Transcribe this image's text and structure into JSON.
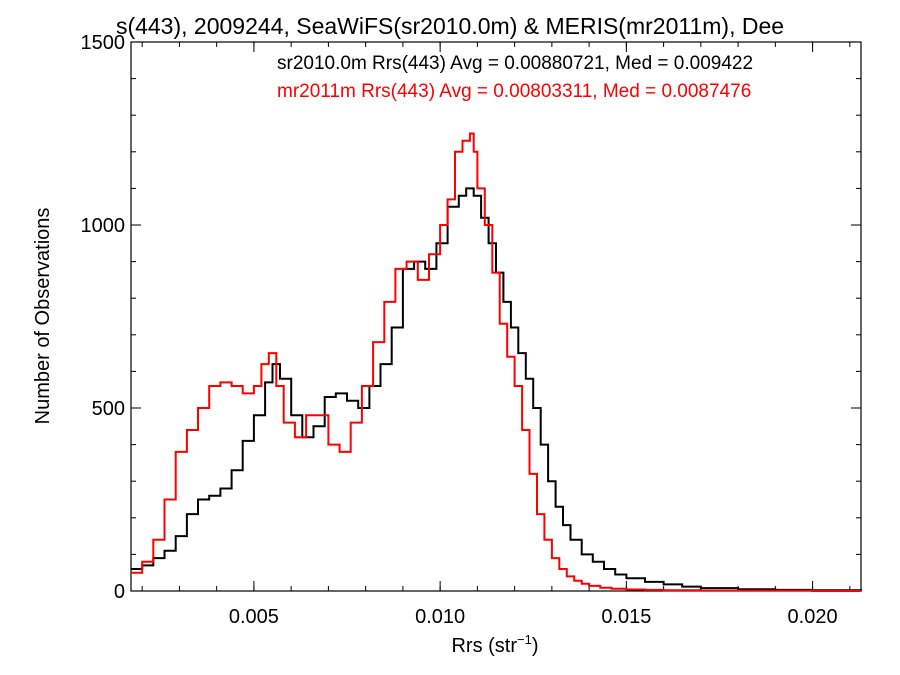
{
  "chart_data": {
    "type": "line",
    "title": "s(443), 2009244, SeaWiFS(sr2010.0m) & MERIS(mr2011m), Dee",
    "xlabel": "Rrs (str",
    "xlabel_sup": "−1",
    "xlabel_close": ")",
    "ylabel": "Number of Observations",
    "xlim": [
      0.0017,
      0.0213
    ],
    "ylim": [
      0,
      1500
    ],
    "xticks": [
      {
        "value": 0.005,
        "label": "0.005"
      },
      {
        "value": 0.01,
        "label": "0.010"
      },
      {
        "value": 0.015,
        "label": "0.015"
      },
      {
        "value": 0.02,
        "label": "0.020"
      }
    ],
    "yticks": [
      {
        "value": 0,
        "label": "0"
      },
      {
        "value": 500,
        "label": "500"
      },
      {
        "value": 1000,
        "label": "1000"
      },
      {
        "value": 1500,
        "label": "1500"
      }
    ],
    "grid": false,
    "legend_position": "top-right",
    "series": [
      {
        "name": "sr2010.0m",
        "legend_text": "sr2010.0m Rrs(443) Avg = 0.00880721, Med = 0.009422",
        "color": "#000000",
        "x": [
          0.0017,
          0.002,
          0.0023,
          0.0026,
          0.0029,
          0.0032,
          0.0035,
          0.0038,
          0.0041,
          0.0044,
          0.0047,
          0.005,
          0.0053,
          0.0055,
          0.0057,
          0.006,
          0.0063,
          0.0066,
          0.0069,
          0.0072,
          0.0075,
          0.0078,
          0.0081,
          0.0084,
          0.0087,
          0.009,
          0.0093,
          0.0096,
          0.0099,
          0.0102,
          0.0105,
          0.0107,
          0.0109,
          0.0111,
          0.0113,
          0.0115,
          0.0117,
          0.0119,
          0.0121,
          0.0123,
          0.0125,
          0.0127,
          0.0129,
          0.0131,
          0.0133,
          0.0135,
          0.0138,
          0.0141,
          0.0144,
          0.0147,
          0.015,
          0.0155,
          0.016,
          0.0165,
          0.017,
          0.018,
          0.019,
          0.02,
          0.0213
        ],
        "y": [
          60,
          70,
          90,
          110,
          150,
          210,
          250,
          260,
          280,
          330,
          410,
          480,
          570,
          620,
          580,
          480,
          420,
          450,
          530,
          540,
          520,
          500,
          560,
          620,
          720,
          880,
          900,
          880,
          950,
          1050,
          1080,
          1100,
          1080,
          1020,
          950,
          870,
          790,
          720,
          650,
          580,
          500,
          400,
          300,
          230,
          180,
          140,
          100,
          80,
          60,
          45,
          35,
          25,
          18,
          12,
          8,
          5,
          3,
          2,
          1
        ]
      },
      {
        "name": "mr2011m",
        "legend_text": "mr2011m Rrs(443) Avg = 0.00803311, Med = 0.0087476",
        "color": "#ff0000",
        "x": [
          0.0017,
          0.002,
          0.0023,
          0.0026,
          0.0029,
          0.0032,
          0.0035,
          0.0038,
          0.0041,
          0.0044,
          0.0047,
          0.005,
          0.0052,
          0.0054,
          0.0056,
          0.0058,
          0.0061,
          0.0064,
          0.0067,
          0.007,
          0.0073,
          0.0076,
          0.0079,
          0.0082,
          0.0085,
          0.0088,
          0.0091,
          0.0094,
          0.0097,
          0.01,
          0.0102,
          0.0104,
          0.0106,
          0.0108,
          0.0109,
          0.011,
          0.0112,
          0.0114,
          0.0116,
          0.0118,
          0.012,
          0.0122,
          0.0124,
          0.0126,
          0.0128,
          0.013,
          0.0132,
          0.0134,
          0.0136,
          0.0138,
          0.014,
          0.0143,
          0.0146,
          0.015,
          0.0155,
          0.016,
          0.017,
          0.018,
          0.02,
          0.0213
        ],
        "y": [
          50,
          80,
          140,
          250,
          380,
          440,
          500,
          560,
          570,
          560,
          540,
          560,
          620,
          650,
          560,
          460,
          420,
          480,
          480,
          400,
          380,
          460,
          560,
          680,
          790,
          880,
          900,
          850,
          920,
          1000,
          1070,
          1200,
          1230,
          1250,
          1200,
          1100,
          1000,
          870,
          730,
          640,
          560,
          440,
          320,
          210,
          140,
          90,
          60,
          40,
          28,
          20,
          14,
          9,
          6,
          4,
          3,
          2,
          1,
          1,
          0,
          0
        ]
      }
    ]
  }
}
